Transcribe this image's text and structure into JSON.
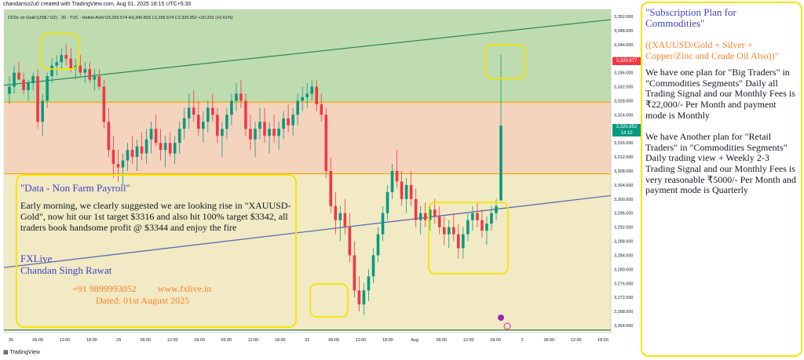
{
  "header": {
    "topline": "chandanso2u0 created with TradingView.com, Aug 01, 2025 18:15 UTC+5:30",
    "symbol_line": "CFDs on Gold (US$ / OZ) · 30 · TVC · Heikin Ashi",
    "ohlc": "O3,299.574  H3,340.893  L3,299.574  C3,320.852  +20.202 (+0.61%)"
  },
  "price_tags": {
    "high": "3,339.877",
    "current_price": "3,320.852",
    "current_time": "14:10"
  },
  "footer": {
    "logo": "TradingView"
  },
  "left_box": {
    "title": "\"Data - Non Farm Payroll\"",
    "body": "Early morning, we clearly suggested we are looking rise in \"XAUUSD-Gold\",  now hit our 1st target $3316 and also hit 100% target $3342, all traders book handsome profit @ $3344 and enjoy the fire",
    "brand_1": "FXLive",
    "brand_2": "Chandan Singh Rawat",
    "contact": "+91 9899993052         www.fxlive.in",
    "date": "Dated: 01st August 2025"
  },
  "right_panel": {
    "title": "\"Subscription Plan for Commodities\"",
    "subtitle": "((XAUUSD/Gold + Silver + Copper/Zinc and Crude Oil Also))\"",
    "plan_1": "We have one plan for \"Big Traders\"  in \"Commodities Segments\" Daily all Trading Signal and our Monthly Fees is ₹22,000/- Per Month and payment mode is Monthly",
    "plan_2": "We have Another plan for \"Retail Traders\"  in \"Commodities Segments\" Daily trading view + Weekly 2-3 Trading Signal and our Monthly Fees is very reasonable ₹5000/- Per Month and payment mode is Quarterly"
  },
  "chart_data": {
    "type": "candlestick",
    "price_range": [
      3262,
      3354
    ],
    "y_ticks": [
      "3,352.000",
      "3,348.000",
      "3,344.000",
      "3,340.000",
      "3,336.000",
      "3,332.000",
      "3,328.000",
      "3,324.000",
      "3,320.000",
      "3,316.000",
      "3,312.000",
      "3,308.000",
      "3,304.000",
      "3,300.000",
      "3,296.000",
      "3,292.000",
      "3,288.000",
      "3,284.000",
      "3,280.000",
      "3,276.000",
      "3,272.000",
      "3,268.000",
      "3,264.000"
    ],
    "x_ticks": [
      "26",
      "06:00",
      "12:00",
      "18:00",
      "29",
      "06:00",
      "12:00",
      "18:00",
      "06:00",
      "12:00",
      "18:00",
      "31",
      "06:00",
      "12:00",
      "18:00",
      "Aug",
      "06:00",
      "12:00",
      "18:00",
      "2",
      "06:00",
      "12:00",
      "18:00"
    ],
    "levels": [
      {
        "price": 3327.6,
        "color": "#f7a600"
      },
      {
        "price": 3307.2,
        "color": "#f7a600"
      },
      {
        "price": 3262.7,
        "color": "#2e7d32"
      }
    ],
    "channel_lines": [
      {
        "name": "upper",
        "from": 3332.4,
        "to": 3351.1,
        "color": "#2e8b57"
      },
      {
        "name": "lower",
        "from": 3280.5,
        "to": 3301.0,
        "color": "#5f6fa8"
      }
    ],
    "zones": [
      {
        "from": 3327.6,
        "to": 3354,
        "color": "#a9cf96"
      },
      {
        "from": 3307.2,
        "to": 3327.6,
        "color": "#f1c6a8"
      },
      {
        "from": 3262.7,
        "to": 3307.2,
        "color": "#ece3b2"
      }
    ],
    "up_color": "#089981",
    "down_color": "#f23645",
    "candles": [
      [
        3330,
        3335,
        3327,
        3332
      ],
      [
        3332,
        3338,
        3330,
        3336
      ],
      [
        3336,
        3339,
        3334,
        3334
      ],
      [
        3334,
        3336,
        3330,
        3331
      ],
      [
        3331,
        3334,
        3328,
        3333
      ],
      [
        3333,
        3336,
        3331,
        3335
      ],
      [
        3335,
        3337,
        3320,
        3322
      ],
      [
        3322,
        3330,
        3318,
        3328
      ],
      [
        3328,
        3336,
        3326,
        3335
      ],
      [
        3335,
        3340,
        3333,
        3338
      ],
      [
        3338,
        3341,
        3335,
        3339
      ],
      [
        3339,
        3343,
        3337,
        3341
      ],
      [
        3341,
        3344,
        3338,
        3340
      ],
      [
        3340,
        3343,
        3336,
        3337
      ],
      [
        3337,
        3340,
        3334,
        3338
      ],
      [
        3338,
        3341,
        3335,
        3336
      ],
      [
        3336,
        3339,
        3333,
        3337
      ],
      [
        3337,
        3339,
        3333,
        3334
      ],
      [
        3334,
        3337,
        3331,
        3335
      ],
      [
        3335,
        3337,
        3331,
        3332
      ],
      [
        3332,
        3334,
        3320,
        3322
      ],
      [
        3322,
        3326,
        3312,
        3314
      ],
      [
        3314,
        3318,
        3306,
        3310
      ],
      [
        3310,
        3314,
        3305,
        3309
      ],
      [
        3309,
        3313,
        3304,
        3311
      ],
      [
        3311,
        3316,
        3308,
        3314
      ],
      [
        3314,
        3318,
        3310,
        3312
      ],
      [
        3312,
        3317,
        3308,
        3315
      ],
      [
        3315,
        3319,
        3311,
        3313
      ],
      [
        3313,
        3320,
        3310,
        3317
      ],
      [
        3317,
        3322,
        3313,
        3320
      ],
      [
        3320,
        3324,
        3315,
        3316
      ],
      [
        3316,
        3320,
        3311,
        3314
      ],
      [
        3314,
        3318,
        3309,
        3316
      ],
      [
        3316,
        3319,
        3312,
        3313
      ],
      [
        3313,
        3318,
        3310,
        3316
      ],
      [
        3316,
        3322,
        3313,
        3320
      ],
      [
        3320,
        3326,
        3317,
        3323
      ],
      [
        3323,
        3330,
        3320,
        3326
      ],
      [
        3326,
        3331,
        3322,
        3324
      ],
      [
        3324,
        3328,
        3318,
        3320
      ],
      [
        3320,
        3325,
        3316,
        3322
      ],
      [
        3322,
        3328,
        3319,
        3326
      ],
      [
        3326,
        3330,
        3322,
        3324
      ],
      [
        3324,
        3326,
        3316,
        3318
      ],
      [
        3318,
        3322,
        3312,
        3320
      ],
      [
        3320,
        3326,
        3317,
        3324
      ],
      [
        3324,
        3330,
        3321,
        3328
      ],
      [
        3328,
        3333,
        3325,
        3330
      ],
      [
        3330,
        3334,
        3326,
        3328
      ],
      [
        3328,
        3330,
        3318,
        3320
      ],
      [
        3320,
        3324,
        3314,
        3317
      ],
      [
        3317,
        3322,
        3312,
        3320
      ],
      [
        3320,
        3326,
        3317,
        3322
      ],
      [
        3322,
        3326,
        3316,
        3318
      ],
      [
        3318,
        3322,
        3313,
        3320
      ],
      [
        3320,
        3324,
        3316,
        3318
      ],
      [
        3318,
        3322,
        3314,
        3320
      ],
      [
        3320,
        3325,
        3317,
        3323
      ],
      [
        3323,
        3327,
        3319,
        3321
      ],
      [
        3321,
        3326,
        3318,
        3324
      ],
      [
        3324,
        3330,
        3321,
        3328
      ],
      [
        3328,
        3332,
        3325,
        3329
      ],
      [
        3329,
        3333,
        3326,
        3330
      ],
      [
        3330,
        3334,
        3328,
        3332
      ],
      [
        3332,
        3334,
        3325,
        3327
      ],
      [
        3327,
        3330,
        3322,
        3324
      ],
      [
        3324,
        3326,
        3306,
        3308
      ],
      [
        3308,
        3312,
        3296,
        3298
      ],
      [
        3298,
        3302,
        3290,
        3294
      ],
      [
        3294,
        3298,
        3288,
        3296
      ],
      [
        3296,
        3300,
        3290,
        3292
      ],
      [
        3292,
        3296,
        3282,
        3284
      ],
      [
        3284,
        3288,
        3272,
        3274
      ],
      [
        3274,
        3278,
        3268,
        3270
      ],
      [
        3270,
        3276,
        3267,
        3274
      ],
      [
        3274,
        3280,
        3271,
        3278
      ],
      [
        3278,
        3286,
        3276,
        3284
      ],
      [
        3284,
        3292,
        3282,
        3290
      ],
      [
        3290,
        3298,
        3288,
        3296
      ],
      [
        3296,
        3304,
        3294,
        3302
      ],
      [
        3302,
        3310,
        3300,
        3308
      ],
      [
        3308,
        3314,
        3303,
        3305
      ],
      [
        3305,
        3308,
        3298,
        3300
      ],
      [
        3300,
        3306,
        3296,
        3304
      ],
      [
        3304,
        3308,
        3298,
        3300
      ],
      [
        3300,
        3303,
        3292,
        3294
      ],
      [
        3294,
        3298,
        3290,
        3296
      ],
      [
        3296,
        3299,
        3292,
        3294
      ],
      [
        3294,
        3298,
        3291,
        3297
      ],
      [
        3297,
        3300,
        3293,
        3295
      ],
      [
        3295,
        3298,
        3290,
        3292
      ],
      [
        3292,
        3295,
        3287,
        3290
      ],
      [
        3290,
        3294,
        3286,
        3292
      ],
      [
        3292,
        3296,
        3288,
        3290
      ],
      [
        3290,
        3293,
        3283,
        3286
      ],
      [
        3286,
        3292,
        3283,
        3290
      ],
      [
        3290,
        3296,
        3288,
        3294
      ],
      [
        3294,
        3298,
        3291,
        3296
      ],
      [
        3296,
        3299,
        3292,
        3294
      ],
      [
        3294,
        3297,
        3289,
        3291
      ],
      [
        3291,
        3295,
        3287,
        3293
      ],
      [
        3293,
        3298,
        3291,
        3296
      ],
      [
        3296,
        3300,
        3294,
        3298
      ],
      [
        3299.6,
        3341,
        3299.6,
        3320.9
      ]
    ]
  }
}
